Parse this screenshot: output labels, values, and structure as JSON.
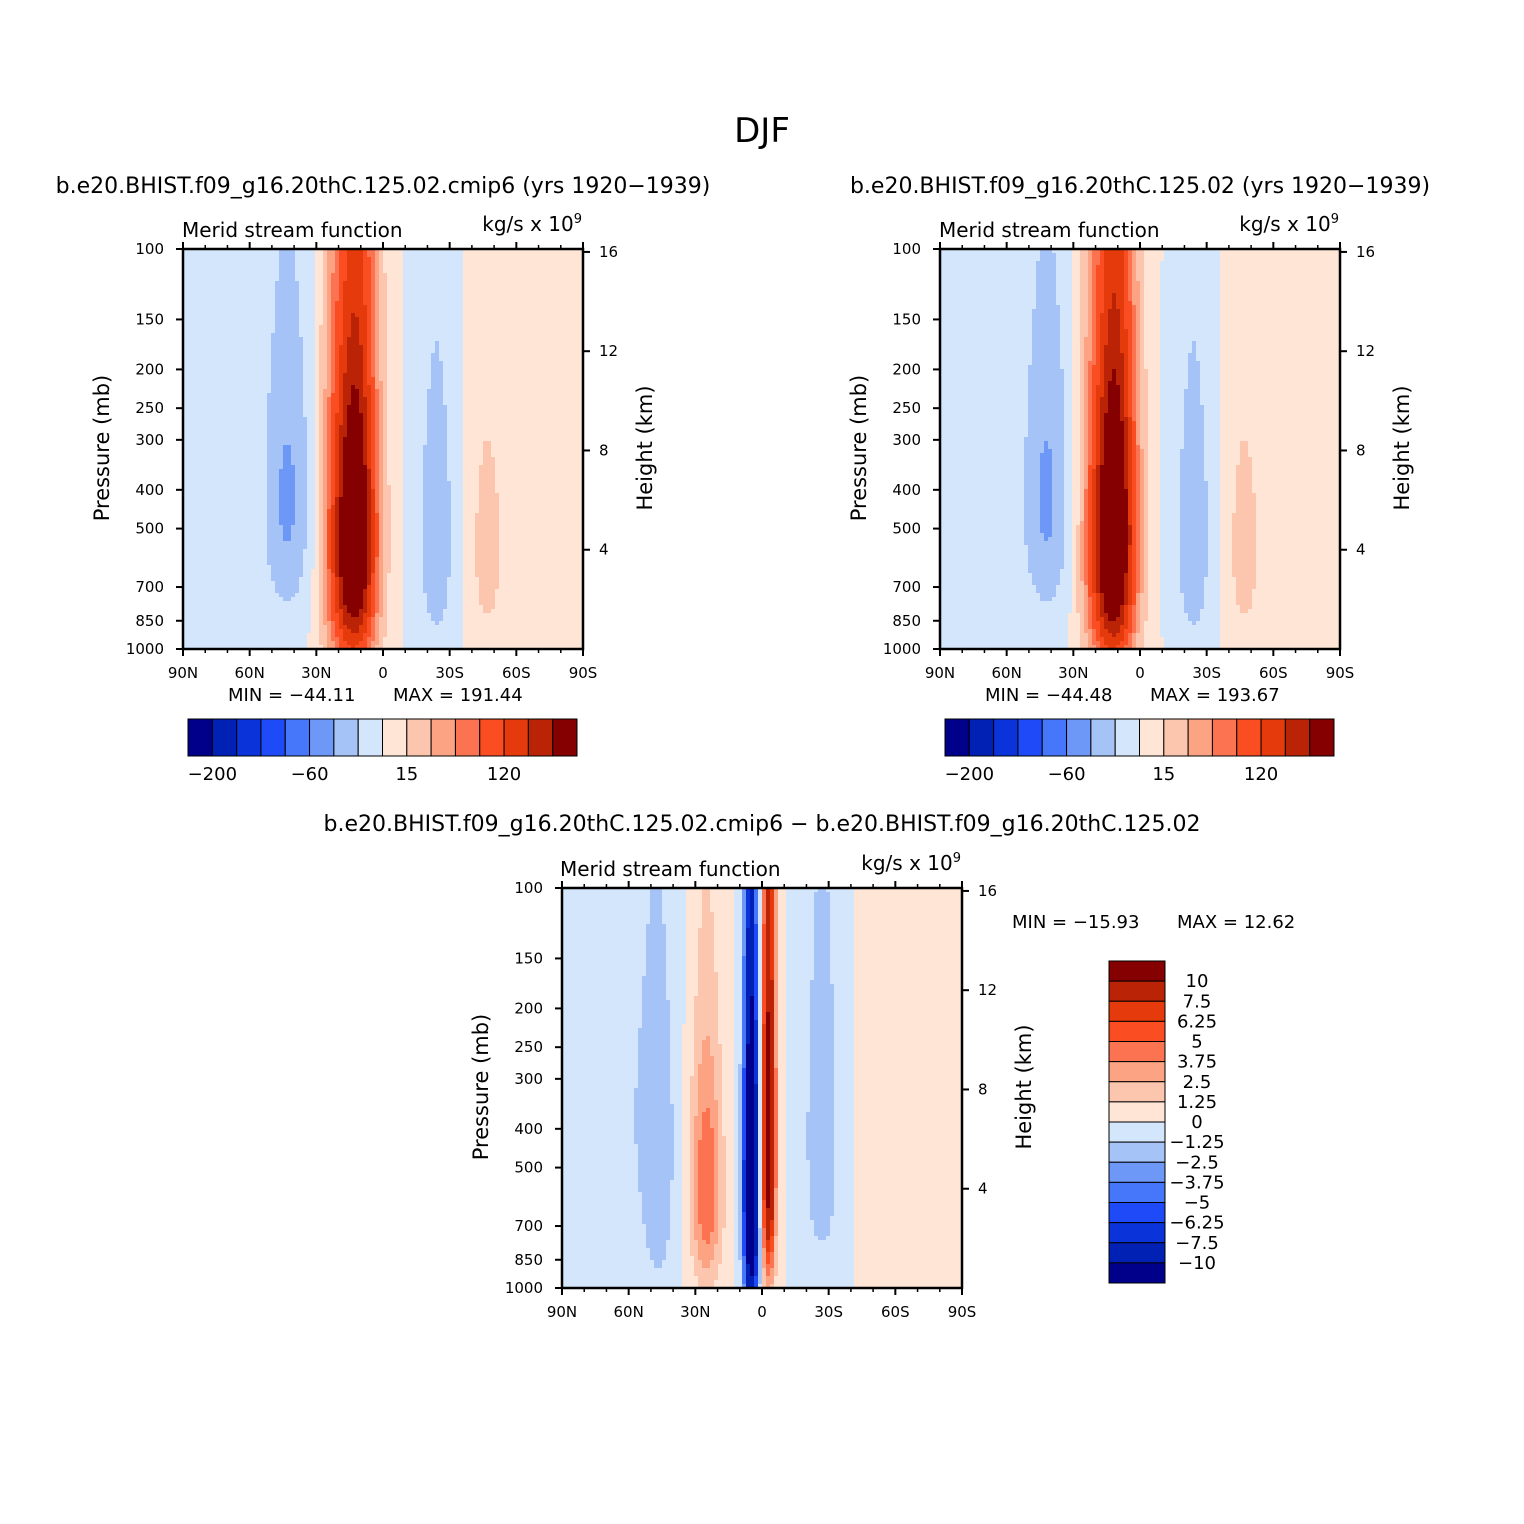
{
  "figure": {
    "title": "DJF"
  },
  "colors": {
    "levels": [
      "#00008b",
      "#0021b3",
      "#0a33d9",
      "#1f4af7",
      "#4677fa",
      "#6e98f7",
      "#a6c3f7",
      "#d4e6fb",
      "#fee5d6",
      "#fcc6ae",
      "#fba383",
      "#fb7350",
      "#fb4d22",
      "#e53a0c",
      "#bb2307",
      "#850000"
    ],
    "axis": "#000000"
  },
  "chart_data": [
    {
      "type": "heatmap",
      "id": "panel1",
      "title": "b.e20.BHIST.f09_g16.20thC.125.02.cmip6 (yrs 1920−1939)",
      "variable": "Merid stream function",
      "units_text": "kg/s x 10",
      "units_exp": "9",
      "x_ticks": [
        "90N",
        "60N",
        "30N",
        "0",
        "30S",
        "60S",
        "90S"
      ],
      "x_values": [
        90,
        60,
        30,
        0,
        -30,
        -60,
        -90
      ],
      "y_ticks": [
        "100",
        "150",
        "200",
        "250",
        "300",
        "400",
        "500",
        "700",
        "850",
        "1000"
      ],
      "y_values": [
        100,
        150,
        200,
        250,
        300,
        400,
        500,
        700,
        850,
        1000
      ],
      "y2_ticks": [
        "16",
        "12",
        "8",
        "4"
      ],
      "y2_values": [
        16,
        12,
        8,
        4
      ],
      "ylabel": "Pressure (mb)",
      "y2label": "Height (km)",
      "min_text": "MIN = −44.11",
      "max_text": "MAX = 191.44",
      "colorbar_labels": [
        "−200",
        "−60",
        "15",
        "120"
      ],
      "colorbar_label_at": [
        0,
        4,
        8,
        12
      ],
      "features": [
        {
          "lat": 43,
          "pc": 420,
          "sx": 8,
          "sy": 270,
          "v": -44
        },
        {
          "lat": 17,
          "pc": 450,
          "sx": 5,
          "sy": 380,
          "v": -30
        },
        {
          "lat": 14,
          "pc": 520,
          "sx": 7.5,
          "sy": 380,
          "v": 191
        },
        {
          "lat": -24,
          "pc": 520,
          "sx": 6,
          "sy": 330,
          "v": -35
        },
        {
          "lat": -47,
          "pc": 560,
          "sx": 6,
          "sy": 300,
          "v": 22
        }
      ]
    },
    {
      "type": "heatmap",
      "id": "panel2",
      "title": "b.e20.BHIST.f09_g16.20thC.125.02 (yrs 1920−1939)",
      "variable": "Merid stream function",
      "units_text": "kg/s x 10",
      "units_exp": "9",
      "x_ticks": [
        "90N",
        "60N",
        "30N",
        "0",
        "30S",
        "60S",
        "90S"
      ],
      "x_values": [
        90,
        60,
        30,
        0,
        -30,
        -60,
        -90
      ],
      "y_ticks": [
        "100",
        "150",
        "200",
        "250",
        "300",
        "400",
        "500",
        "700",
        "850",
        "1000"
      ],
      "y_values": [
        100,
        150,
        200,
        250,
        300,
        400,
        500,
        700,
        850,
        1000
      ],
      "y2_ticks": [
        "16",
        "12",
        "8",
        "4"
      ],
      "y2_values": [
        16,
        12,
        8,
        4
      ],
      "ylabel": "Pressure (mb)",
      "y2label": "Height (km)",
      "min_text": "MIN = −44.48",
      "max_text": "MAX = 193.67",
      "colorbar_labels": [
        "−200",
        "−60",
        "15",
        "120"
      ],
      "colorbar_label_at": [
        0,
        4,
        8,
        12
      ],
      "features": [
        {
          "lat": 42,
          "pc": 420,
          "sx": 8,
          "sy": 270,
          "v": -44
        },
        {
          "lat": 17,
          "pc": 450,
          "sx": 5,
          "sy": 380,
          "v": -30
        },
        {
          "lat": 13,
          "pc": 520,
          "sx": 7.5,
          "sy": 380,
          "v": 193
        },
        {
          "lat": -24,
          "pc": 520,
          "sx": 6,
          "sy": 330,
          "v": -35
        },
        {
          "lat": -47,
          "pc": 560,
          "sx": 6,
          "sy": 300,
          "v": 22
        }
      ]
    },
    {
      "type": "heatmap",
      "id": "panel3",
      "title": "b.e20.BHIST.f09_g16.20thC.125.02.cmip6 − b.e20.BHIST.f09_g16.20thC.125.02",
      "variable": "Merid stream function",
      "units_text": "kg/s x 10",
      "units_exp": "9",
      "x_ticks": [
        "90N",
        "60N",
        "30N",
        "0",
        "30S",
        "60S",
        "90S"
      ],
      "x_values": [
        90,
        60,
        30,
        0,
        -30,
        -60,
        -90
      ],
      "y_ticks": [
        "100",
        "150",
        "200",
        "250",
        "300",
        "400",
        "500",
        "700",
        "850",
        "1000"
      ],
      "y_values": [
        100,
        150,
        200,
        250,
        300,
        400,
        500,
        700,
        850,
        1000
      ],
      "y2_ticks": [
        "16",
        "12",
        "8",
        "4"
      ],
      "y2_values": [
        16,
        12,
        8,
        4
      ],
      "ylabel": "Pressure (mb)",
      "y2label": "Height (km)",
      "min_text": "MIN = −15.93",
      "max_text": "MAX =  12.62",
      "colorbar_labels": [
        "10",
        "7.5",
        "6.25",
        "5",
        "3.75",
        "2.5",
        "1.25",
        "0",
        "−1.25",
        "−2.5",
        "−3.75",
        "−5",
        "−6.25",
        "−7.5",
        "−10"
      ],
      "features": [
        {
          "lat": 5,
          "pc": 560,
          "sx": 2.3,
          "sy": 400,
          "v": -15.9
        },
        {
          "lat": -3,
          "pc": 420,
          "sx": 2.2,
          "sy": 330,
          "v": 12.6
        },
        {
          "lat": 25,
          "pc": 560,
          "sx": 5,
          "sy": 280,
          "v": 5
        },
        {
          "lat": 47,
          "pc": 520,
          "sx": 6,
          "sy": 380,
          "v": -2
        },
        {
          "lat": -27,
          "pc": 420,
          "sx": 6,
          "sy": 330,
          "v": -2.2
        },
        {
          "lat": 58,
          "pc": 350,
          "sx": 12,
          "sy": 200,
          "v": -0.8
        },
        {
          "lat": -60,
          "pc": 400,
          "sx": 10,
          "sy": 300,
          "v": 0.7
        }
      ]
    }
  ]
}
